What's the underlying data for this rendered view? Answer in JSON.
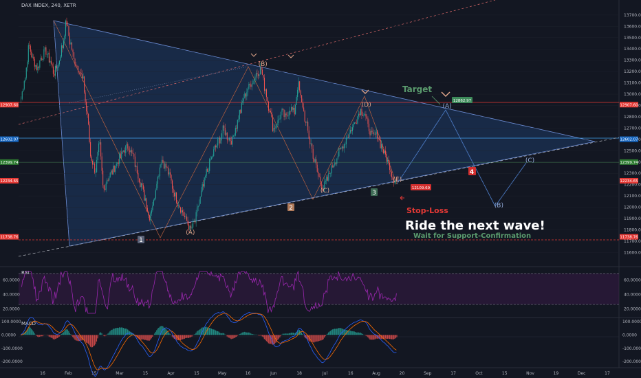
{
  "header": {
    "title": "DAX INDEX, 240, XETR"
  },
  "annotations": {
    "headline": "Ride the next wave!",
    "subline": "Wait for Support-Confirmation",
    "target": "Target",
    "stop_loss": "Stop-Loss",
    "stop_box": "12109.69",
    "target_box": "12862.97"
  },
  "colors": {
    "background": "#131722",
    "up_candle": "#26a69a",
    "down_candle": "#ef5350",
    "triangle_fill": "#1e3a66",
    "rsi": "#9c27b0",
    "macd_line": "#2962ff",
    "signal_line": "#ff6d00",
    "target_green": "#5b9c6e",
    "stop_red": "#e53935"
  },
  "chart_data": [
    {
      "type": "candlestick",
      "title": "DAX INDEX, 240, XETR",
      "x_labels": [
        "16",
        "Feb",
        "15",
        "Mar",
        "15",
        "Apr",
        "15",
        "May",
        "16",
        "Jun",
        "18",
        "Jul",
        "16",
        "Aug",
        "20",
        "Sep",
        "17",
        "Oct",
        "15",
        "Nov",
        "19",
        "Dec",
        "17"
      ],
      "y_ticks": [
        13700,
        13600,
        13500,
        13400,
        13300,
        13200,
        13100,
        13000,
        12900,
        12800,
        12700,
        12600,
        12500,
        12400,
        12300,
        12200,
        12100,
        12000,
        11900,
        11800,
        11700,
        11600
      ],
      "ylim": [
        11560,
        13760
      ],
      "price_labels": [
        {
          "value": "12907.60",
          "color": "#e53935"
        },
        {
          "value": "12602.07",
          "color": "#1565c0"
        },
        {
          "value": "12399.74",
          "color": "#2e7d32"
        },
        {
          "value": "12234.65",
          "color": "#e53935"
        },
        {
          "value": "11738.76",
          "color": "#e53935"
        }
      ],
      "price_path": [
        [
          0,
          12960
        ],
        [
          2,
          13150
        ],
        [
          4,
          13420
        ],
        [
          6,
          13300
        ],
        [
          8,
          13230
        ],
        [
          10,
          13330
        ],
        [
          12,
          13380
        ],
        [
          14,
          13300
        ],
        [
          16,
          13190
        ],
        [
          18,
          13260
        ],
        [
          20,
          13420
        ],
        [
          22,
          13630
        ],
        [
          24,
          13450
        ],
        [
          26,
          13290
        ],
        [
          28,
          13230
        ],
        [
          30,
          13120
        ],
        [
          32,
          12830
        ],
        [
          34,
          12430
        ],
        [
          36,
          12330
        ],
        [
          38,
          12540
        ],
        [
          40,
          12160
        ],
        [
          42,
          12260
        ],
        [
          44,
          12310
        ],
        [
          46,
          12380
        ],
        [
          48,
          12440
        ],
        [
          50,
          12510
        ],
        [
          52,
          12540
        ],
        [
          54,
          12460
        ],
        [
          56,
          12330
        ],
        [
          58,
          12210
        ],
        [
          60,
          12080
        ],
        [
          62,
          11920
        ],
        [
          64,
          12040
        ],
        [
          66,
          12260
        ],
        [
          68,
          12420
        ],
        [
          70,
          12360
        ],
        [
          72,
          12270
        ],
        [
          74,
          12130
        ],
        [
          76,
          12040
        ],
        [
          78,
          11960
        ],
        [
          80,
          11880
        ],
        [
          82,
          11800
        ],
        [
          84,
          11870
        ],
        [
          86,
          12030
        ],
        [
          88,
          12180
        ],
        [
          90,
          12320
        ],
        [
          92,
          12430
        ],
        [
          94,
          12530
        ],
        [
          96,
          12600
        ],
        [
          98,
          12690
        ],
        [
          100,
          12620
        ],
        [
          102,
          12590
        ],
        [
          104,
          12720
        ],
        [
          106,
          12850
        ],
        [
          108,
          12980
        ],
        [
          110,
          13060
        ],
        [
          112,
          13120
        ],
        [
          114,
          13190
        ],
        [
          116,
          13220
        ],
        [
          118,
          13050
        ],
        [
          120,
          12880
        ],
        [
          122,
          12700
        ],
        [
          124,
          12750
        ],
        [
          126,
          12840
        ],
        [
          128,
          12790
        ],
        [
          130,
          12880
        ],
        [
          132,
          12840
        ],
        [
          134,
          13080
        ],
        [
          136,
          12900
        ],
        [
          138,
          12720
        ],
        [
          140,
          12560
        ],
        [
          142,
          12400
        ],
        [
          144,
          12260
        ],
        [
          146,
          12170
        ],
        [
          148,
          12240
        ],
        [
          150,
          12340
        ],
        [
          152,
          12420
        ],
        [
          154,
          12490
        ],
        [
          156,
          12560
        ],
        [
          158,
          12640
        ],
        [
          160,
          12700
        ],
        [
          162,
          12780
        ],
        [
          164,
          12860
        ],
        [
          166,
          12830
        ],
        [
          168,
          12700
        ],
        [
          170,
          12620
        ],
        [
          172,
          12650
        ],
        [
          174,
          12550
        ],
        [
          176,
          12460
        ],
        [
          178,
          12370
        ],
        [
          180,
          12250
        ],
        [
          182,
          12240
        ]
      ],
      "wave_labels": [
        {
          "text": "(A)",
          "x": 82,
          "y": 11760,
          "color": "#e0a58a"
        },
        {
          "text": "(B)",
          "x": 117,
          "y": 13250,
          "color": "#e0a58a"
        },
        {
          "text": "(C)",
          "x": 147,
          "y": 12130,
          "color": "#e0a58a"
        },
        {
          "text": "(D)",
          "x": 167,
          "y": 12890,
          "color": "#e0a58a"
        },
        {
          "text": "(E)",
          "x": 182,
          "y": 12230,
          "color": "#e0a58a"
        },
        {
          "text": "(A)",
          "x": 206,
          "y": 12880,
          "color": "#8fa8d6"
        },
        {
          "text": "(B)",
          "x": 231,
          "y": 12000,
          "color": "#8fa8d6"
        },
        {
          "text": "(C)",
          "x": 246,
          "y": 12400,
          "color": "#8fa8d6"
        }
      ],
      "wave_count_labels": [
        "1",
        "2",
        "3",
        "4"
      ]
    },
    {
      "type": "line",
      "title": "RSI",
      "y_ticks": [
        "60.0000",
        "40.0000",
        "20.0000"
      ],
      "ylim": [
        10,
        75
      ],
      "bands": [
        70,
        30
      ]
    },
    {
      "type": "bar",
      "title": "MACD",
      "y_ticks": [
        "100.0000",
        "0.0000",
        "-100.0000",
        "-200.0000"
      ],
      "ylim": [
        -230,
        110
      ]
    }
  ]
}
